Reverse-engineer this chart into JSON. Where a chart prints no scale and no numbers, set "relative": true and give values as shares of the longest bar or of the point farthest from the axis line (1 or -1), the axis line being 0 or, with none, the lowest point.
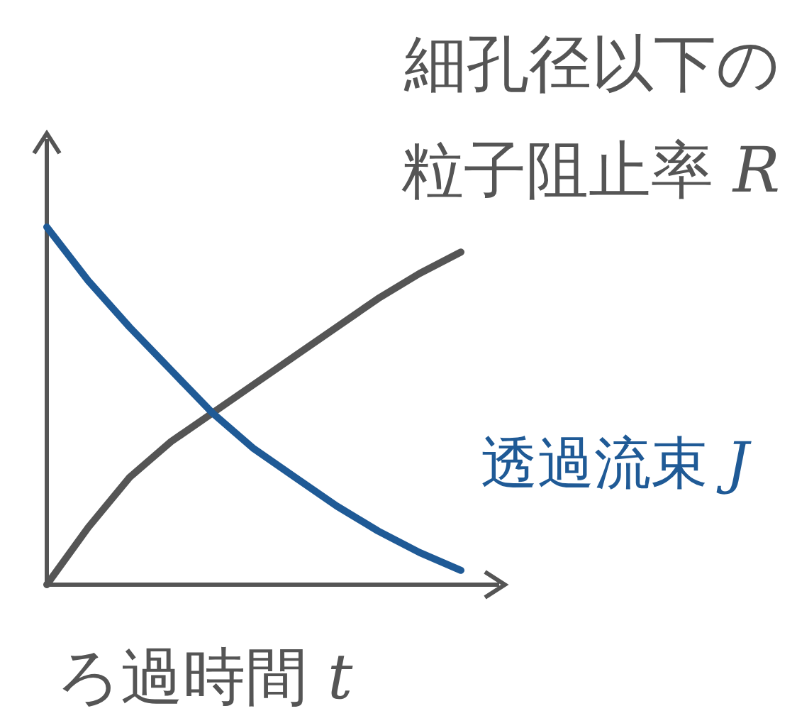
{
  "chart_data": {
    "type": "line",
    "relative": true,
    "xlabel": "ろ過時間 t",
    "legend": false,
    "categories": [
      null,
      null,
      null,
      null,
      null,
      null,
      null,
      null,
      null,
      null,
      null
    ],
    "series": [
      {
        "name": "細孔径以下の粒子阻止率 R",
        "color": "#555555",
        "values": [
          0,
          0.16,
          0.3,
          0.4,
          0.48,
          0.56,
          0.64,
          0.72,
          0.8,
          0.87,
          0.93
        ]
      },
      {
        "name": "透過流束 J",
        "color": "#1f5a96",
        "values": [
          1.0,
          0.85,
          0.72,
          0.6,
          0.48,
          0.38,
          0.3,
          0.22,
          0.15,
          0.09,
          0.04
        ]
      }
    ]
  }
}
